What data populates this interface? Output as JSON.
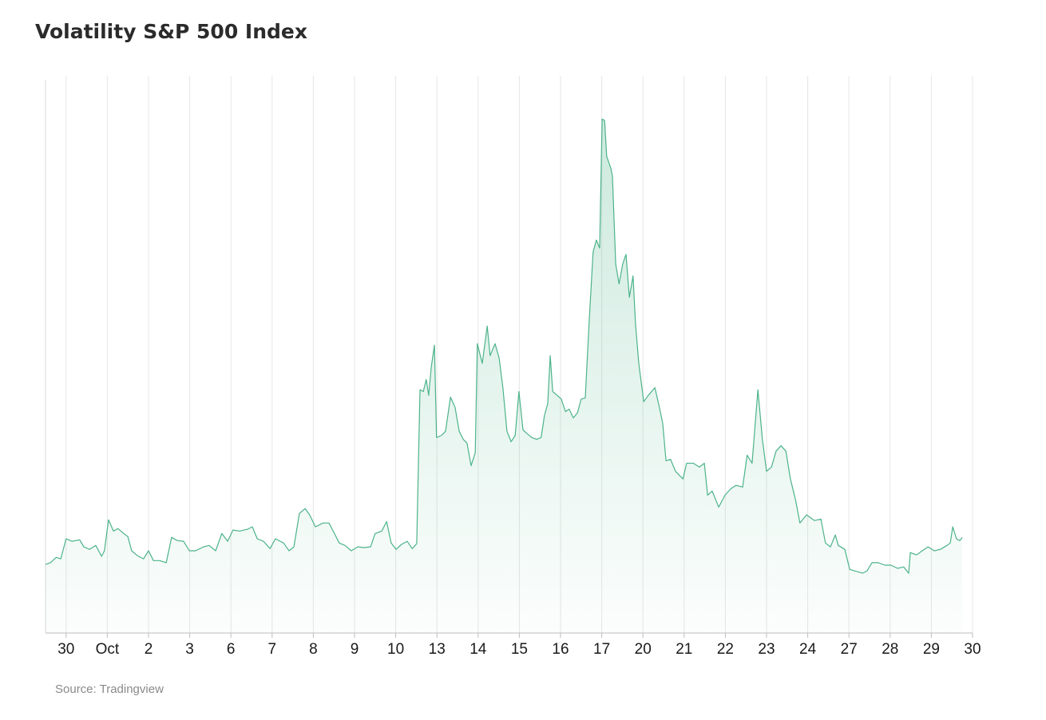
{
  "chart_data": {
    "type": "area",
    "title": "Volatility S&P 500 Index",
    "source": "Source: Tradingview",
    "color": "#4cb38a",
    "grid": true,
    "xlim": [
      -0.5,
      22
    ],
    "ylim": [
      14.35,
      30.2
    ],
    "xticks": [
      {
        "value": 0,
        "label": "30"
      },
      {
        "value": 1,
        "label": "Oct"
      },
      {
        "value": 2,
        "label": "2"
      },
      {
        "value": 3,
        "label": "3"
      },
      {
        "value": 4,
        "label": "6"
      },
      {
        "value": 5,
        "label": "7"
      },
      {
        "value": 6,
        "label": "8"
      },
      {
        "value": 7,
        "label": "9"
      },
      {
        "value": 8,
        "label": "10"
      },
      {
        "value": 9,
        "label": "13"
      },
      {
        "value": 10,
        "label": "14"
      },
      {
        "value": 11,
        "label": "15"
      },
      {
        "value": 12,
        "label": "16"
      },
      {
        "value": 13,
        "label": "17"
      },
      {
        "value": 14,
        "label": "20"
      },
      {
        "value": 15,
        "label": "21"
      },
      {
        "value": 16,
        "label": "22"
      },
      {
        "value": 17,
        "label": "23"
      },
      {
        "value": 18,
        "label": "24"
      },
      {
        "value": 19,
        "label": "27"
      },
      {
        "value": 20,
        "label": "28"
      },
      {
        "value": 21,
        "label": "29"
      },
      {
        "value": 22,
        "label": "30"
      }
    ],
    "x": [
      -0.5,
      -0.38,
      -0.24,
      -0.13,
      0.0,
      0.14,
      0.33,
      0.43,
      0.57,
      0.72,
      0.86,
      0.93,
      1.03,
      1.15,
      1.26,
      1.4,
      1.5,
      1.59,
      1.73,
      1.88,
      2.0,
      2.12,
      2.27,
      2.43,
      2.56,
      2.7,
      2.85,
      2.99,
      3.14,
      3.34,
      3.47,
      3.63,
      3.78,
      3.92,
      4.05,
      4.21,
      4.4,
      4.52,
      4.64,
      4.79,
      4.95,
      5.08,
      5.28,
      5.41,
      5.53,
      5.66,
      5.8,
      5.91,
      6.05,
      6.24,
      6.38,
      6.5,
      6.63,
      6.77,
      6.92,
      7.08,
      7.23,
      7.39,
      7.5,
      7.66,
      7.78,
      7.89,
      8.01,
      8.14,
      8.28,
      8.4,
      8.51,
      8.59,
      8.67,
      8.74,
      8.8,
      8.86,
      8.94,
      8.99,
      9.11,
      9.21,
      9.33,
      9.44,
      9.54,
      9.64,
      9.73,
      9.83,
      9.93,
      9.98,
      10.1,
      10.22,
      10.29,
      10.41,
      10.51,
      10.6,
      10.7,
      10.8,
      10.9,
      10.99,
      11.09,
      11.19,
      11.3,
      11.42,
      11.53,
      11.61,
      11.69,
      11.75,
      11.81,
      11.92,
      12.02,
      12.12,
      12.21,
      12.31,
      12.41,
      12.5,
      12.6,
      12.7,
      12.79,
      12.87,
      12.95,
      13.01,
      13.07,
      13.12,
      13.22,
      13.26,
      13.34,
      13.42,
      13.51,
      13.59,
      13.67,
      13.76,
      13.82,
      13.9,
      14.02,
      14.13,
      14.29,
      14.4,
      14.48,
      14.56,
      14.67,
      14.79,
      14.97,
      15.06,
      15.22,
      15.37,
      15.49,
      15.57,
      15.68,
      15.84,
      15.99,
      16.13,
      16.26,
      16.42,
      16.53,
      16.65,
      16.79,
      16.9,
      17.0,
      17.12,
      17.23,
      17.35,
      17.47,
      17.58,
      17.7,
      17.81,
      17.97,
      18.16,
      18.32,
      18.43,
      18.55,
      18.67,
      18.74,
      18.9,
      19.02,
      19.13,
      19.33,
      19.44,
      19.56,
      19.71,
      19.87,
      20.02,
      20.18,
      20.33,
      20.45,
      20.49,
      20.64,
      20.78,
      20.92,
      21.07,
      21.22,
      21.38,
      21.46,
      21.52,
      21.61,
      21.69,
      21.75
    ],
    "values": [
      16.3,
      16.35,
      16.5,
      16.46,
      17.03,
      16.96,
      17.0,
      16.8,
      16.73,
      16.84,
      16.53,
      16.69,
      17.57,
      17.25,
      17.32,
      17.18,
      17.09,
      16.69,
      16.55,
      16.46,
      16.69,
      16.41,
      16.41,
      16.35,
      17.07,
      16.98,
      16.96,
      16.69,
      16.69,
      16.8,
      16.84,
      16.69,
      17.18,
      16.96,
      17.28,
      17.25,
      17.3,
      17.37,
      17.03,
      16.96,
      16.75,
      17.03,
      16.91,
      16.69,
      16.8,
      17.75,
      17.89,
      17.71,
      17.37,
      17.48,
      17.48,
      17.21,
      16.91,
      16.84,
      16.69,
      16.8,
      16.78,
      16.8,
      17.18,
      17.25,
      17.52,
      16.91,
      16.73,
      16.87,
      16.96,
      16.75,
      16.89,
      21.27,
      21.22,
      21.56,
      21.11,
      21.9,
      22.54,
      19.91,
      19.97,
      20.09,
      21.06,
      20.77,
      20.09,
      19.86,
      19.75,
      19.11,
      19.48,
      22.58,
      22.02,
      23.08,
      22.24,
      22.58,
      22.17,
      21.33,
      20.09,
      19.79,
      19.97,
      21.22,
      20.13,
      20.02,
      19.91,
      19.86,
      19.91,
      20.54,
      20.88,
      22.24,
      21.22,
      21.11,
      21.0,
      20.65,
      20.72,
      20.47,
      20.61,
      21.0,
      21.04,
      23.31,
      25.19,
      25.53,
      25.3,
      28.97,
      28.93,
      27.91,
      27.57,
      27.35,
      24.85,
      24.28,
      24.85,
      25.12,
      23.9,
      24.51,
      23.15,
      22.02,
      20.93,
      21.11,
      21.33,
      20.77,
      20.31,
      19.25,
      19.29,
      18.95,
      18.73,
      19.18,
      19.18,
      19.07,
      19.18,
      18.27,
      18.39,
      17.93,
      18.27,
      18.45,
      18.55,
      18.5,
      19.41,
      19.18,
      21.27,
      19.86,
      18.95,
      19.07,
      19.52,
      19.68,
      19.52,
      18.73,
      18.16,
      17.48,
      17.71,
      17.55,
      17.59,
      16.91,
      16.8,
      17.14,
      16.84,
      16.73,
      16.16,
      16.12,
      16.05,
      16.12,
      16.35,
      16.35,
      16.28,
      16.28,
      16.19,
      16.23,
      16.05,
      16.64,
      16.57,
      16.69,
      16.8,
      16.69,
      16.73,
      16.84,
      16.91,
      17.37,
      17.03,
      16.98,
      17.07
    ]
  }
}
